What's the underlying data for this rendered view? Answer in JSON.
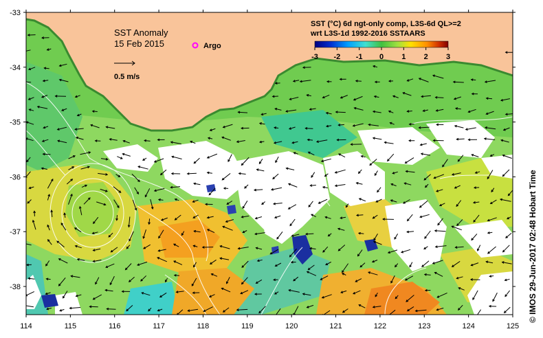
{
  "map": {
    "title": "SST Anomaly",
    "date": "15 Feb 2015",
    "argo_label": "Argo",
    "scale_label": "0.5 m/s",
    "colorbar_title_line1": "SST (°C) 6d ngt-only comp, L3S-6d QL>=2",
    "colorbar_title_line2": "wrt L3S-1d 1992-2016 SSTAARS",
    "colorbar_ticks": [
      "-3",
      "-2",
      "-1",
      "0",
      "1",
      "2",
      "3"
    ],
    "x_ticks": [
      "114",
      "115",
      "116",
      "117",
      "118",
      "119",
      "120",
      "121",
      "122",
      "123",
      "124",
      "125"
    ],
    "y_ticks": [
      "-33",
      "-34",
      "-35",
      "-36",
      "-37",
      "-38"
    ],
    "credit": "© IMOS 29-Jun-2017 02:48 Hobart Time",
    "colors": {
      "land": "#f9c49a",
      "colorbar": [
        "#000080",
        "#0030d0",
        "#00a0ff",
        "#40e0d0",
        "#40c040",
        "#a0e040",
        "#ffe000",
        "#ff9000",
        "#d03000",
        "#800000"
      ]
    }
  }
}
